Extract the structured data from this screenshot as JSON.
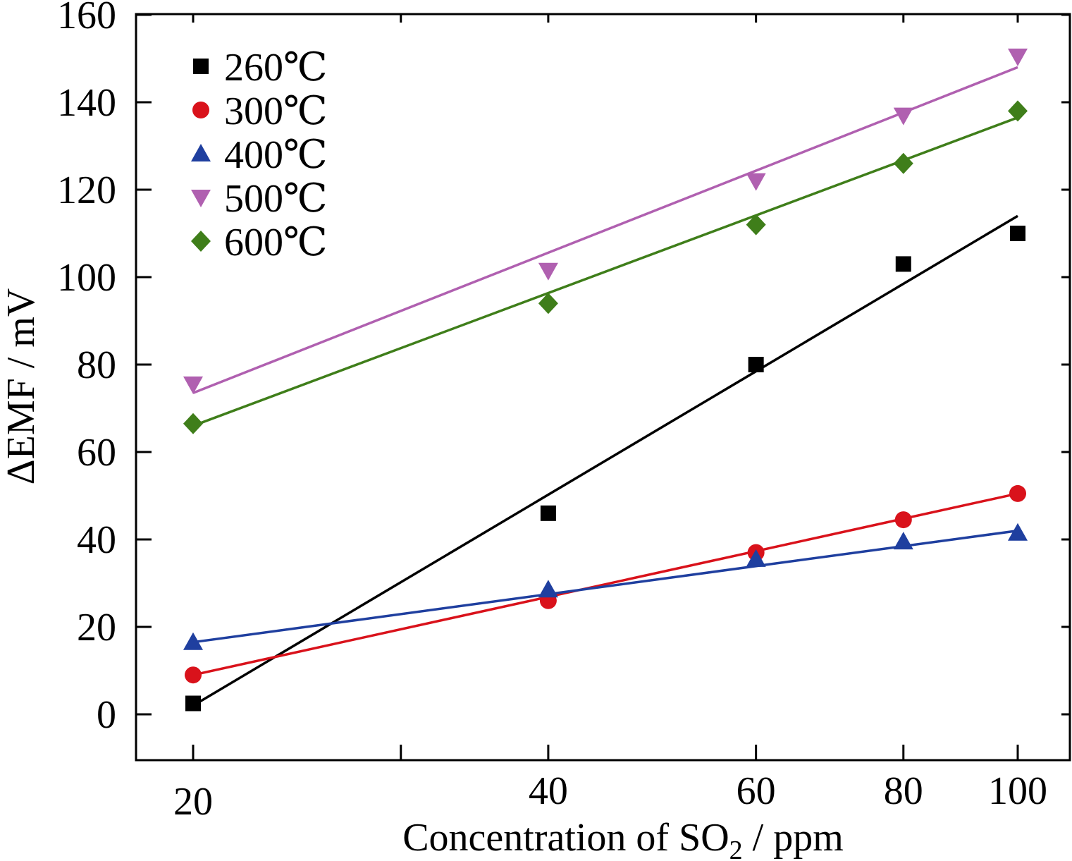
{
  "chart_data": {
    "type": "scatter",
    "xscale": "log",
    "xlabel_main": "Concentration of SO",
    "xlabel_sub": "2",
    "xlabel_tail": " / ppm",
    "ylabel": "ΔEMF / mV",
    "xlim": [
      18,
      110
    ],
    "ylim": [
      -10,
      160
    ],
    "xticks": [
      20,
      40,
      60,
      80,
      100
    ],
    "xtick_labels": [
      "20",
      "40",
      "60",
      "80",
      "100"
    ],
    "yticks": [
      0,
      20,
      40,
      60,
      80,
      100,
      120,
      140,
      160
    ],
    "ytick_labels": [
      "0",
      "20",
      "40",
      "60",
      "80",
      "100",
      "120",
      "140",
      "160"
    ],
    "grid": false,
    "legend_position": "top-left",
    "series": [
      {
        "name": "260℃",
        "color": "#000000",
        "marker": "square",
        "x": [
          20,
          40,
          60,
          80,
          100
        ],
        "y": [
          2.5,
          46,
          80,
          103,
          110
        ],
        "fit": [
          [
            20,
            2
          ],
          [
            100,
            114
          ]
        ]
      },
      {
        "name": "300℃",
        "color": "#d9121b",
        "marker": "circle",
        "x": [
          20,
          40,
          60,
          80,
          100
        ],
        "y": [
          9,
          26,
          37,
          44.5,
          50.5
        ],
        "fit": [
          [
            20,
            9
          ],
          [
            100,
            50.5
          ]
        ]
      },
      {
        "name": "400℃",
        "color": "#1f3f9f",
        "marker": "triangle-up",
        "x": [
          20,
          40,
          60,
          80,
          100
        ],
        "y": [
          16.5,
          28.5,
          35.5,
          39.5,
          41.5
        ],
        "fit": [
          [
            20,
            16.5
          ],
          [
            100,
            42
          ]
        ]
      },
      {
        "name": "500℃",
        "color": "#b060b0",
        "marker": "triangle-down",
        "x": [
          20,
          40,
          60,
          80,
          100
        ],
        "y": [
          75.5,
          101.5,
          122,
          137,
          150.5
        ],
        "fit": [
          [
            20,
            73.5
          ],
          [
            100,
            148
          ]
        ]
      },
      {
        "name": "600℃",
        "color": "#3f7e1a",
        "marker": "diamond",
        "x": [
          20,
          40,
          60,
          80,
          100
        ],
        "y": [
          66.5,
          94,
          112,
          126,
          138
        ],
        "fit": [
          [
            20,
            66
          ],
          [
            100,
            136.5
          ]
        ]
      }
    ]
  }
}
